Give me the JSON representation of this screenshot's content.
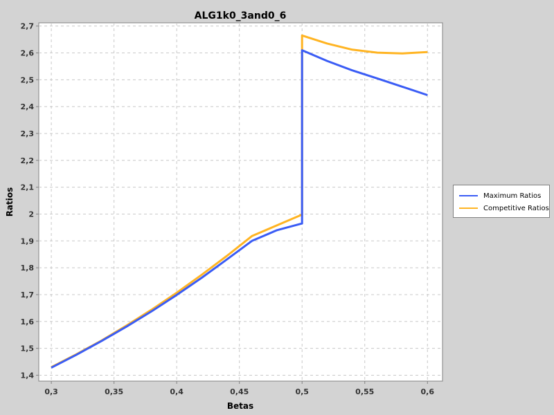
{
  "chart_data": {
    "type": "line",
    "title": "ALG1k0_3and0_6",
    "xlabel": "Betas",
    "ylabel": "Ratios",
    "xlim": [
      0.29,
      0.612
    ],
    "ylim": [
      1.378,
      2.712
    ],
    "x_ticks": [
      0.3,
      0.35,
      0.4,
      0.45,
      0.5,
      0.55,
      0.6
    ],
    "x_tick_labels": [
      "0,3",
      "0,35",
      "0,4",
      "0,45",
      "0,5",
      "0,55",
      "0,6"
    ],
    "y_ticks": [
      1.4,
      1.5,
      1.6,
      1.7,
      1.8,
      1.9,
      2.0,
      2.1,
      2.2,
      2.3,
      2.4,
      2.5,
      2.6,
      2.7
    ],
    "y_tick_labels": [
      "1,4",
      "1,5",
      "1,6",
      "1,7",
      "1,8",
      "1,9",
      "2",
      "2,1",
      "2,2",
      "2,3",
      "2,4",
      "2,5",
      "2,6",
      "2,7"
    ],
    "grid": true,
    "legend_position": "right",
    "series": [
      {
        "name": "Maximum Ratios",
        "color": "#3a5cf5",
        "points": [
          [
            0.3,
            1.428
          ],
          [
            0.32,
            1.476
          ],
          [
            0.34,
            1.527
          ],
          [
            0.36,
            1.581
          ],
          [
            0.38,
            1.638
          ],
          [
            0.4,
            1.699
          ],
          [
            0.42,
            1.763
          ],
          [
            0.44,
            1.831
          ],
          [
            0.46,
            1.9
          ],
          [
            0.48,
            1.94
          ],
          [
            0.5,
            1.965
          ],
          [
            0.5,
            2.61
          ],
          [
            0.52,
            2.57
          ],
          [
            0.54,
            2.535
          ],
          [
            0.56,
            2.505
          ],
          [
            0.58,
            2.474
          ],
          [
            0.6,
            2.443
          ]
        ]
      },
      {
        "name": "Competitive Ratios",
        "color": "#ffb422",
        "points": [
          [
            0.3,
            1.43
          ],
          [
            0.32,
            1.478
          ],
          [
            0.34,
            1.529
          ],
          [
            0.36,
            1.585
          ],
          [
            0.38,
            1.644
          ],
          [
            0.4,
            1.707
          ],
          [
            0.42,
            1.774
          ],
          [
            0.44,
            1.844
          ],
          [
            0.46,
            1.918
          ],
          [
            0.48,
            1.958
          ],
          [
            0.5,
            1.998
          ],
          [
            0.5,
            2.665
          ],
          [
            0.52,
            2.635
          ],
          [
            0.54,
            2.612
          ],
          [
            0.56,
            2.601
          ],
          [
            0.58,
            2.598
          ],
          [
            0.6,
            2.603
          ]
        ]
      }
    ]
  }
}
